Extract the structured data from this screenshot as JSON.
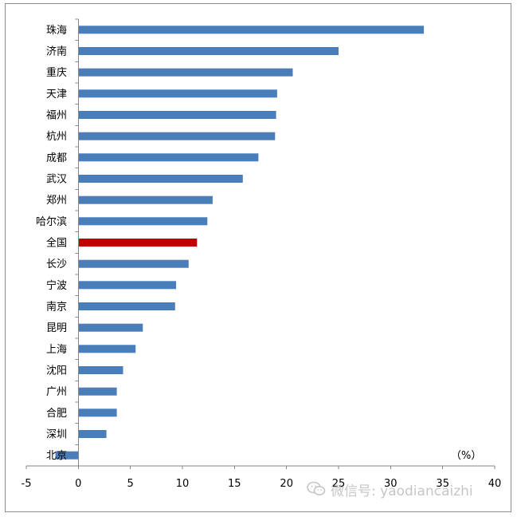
{
  "chart_data": {
    "type": "bar",
    "orientation": "horizontal",
    "categories": [
      "珠海",
      "济南",
      "重庆",
      "天津",
      "福州",
      "杭州",
      "成都",
      "武汉",
      "郑州",
      "哈尔滨",
      "全国",
      "长沙",
      "宁波",
      "南京",
      "昆明",
      "上海",
      "沈阳",
      "广州",
      "合肥",
      "深圳",
      "北京"
    ],
    "values": [
      33.2,
      25.0,
      20.6,
      19.1,
      19.0,
      18.9,
      17.3,
      15.8,
      12.9,
      12.4,
      11.4,
      10.6,
      9.4,
      9.3,
      6.2,
      5.5,
      4.3,
      3.7,
      3.7,
      2.7,
      -2.2
    ],
    "highlight_category": "全国",
    "xlim": [
      -5,
      40
    ],
    "xticks": [
      -5,
      0,
      5,
      10,
      15,
      20,
      25,
      30,
      35,
      40
    ],
    "unit_label": "（%）",
    "grid": false,
    "colors": {
      "bar": "#4a7ebb",
      "highlight": "#c00000",
      "axis": "#868686"
    }
  },
  "watermark": {
    "text": "微信号: yaodiancaizhi",
    "icon": "wechat-icon"
  }
}
